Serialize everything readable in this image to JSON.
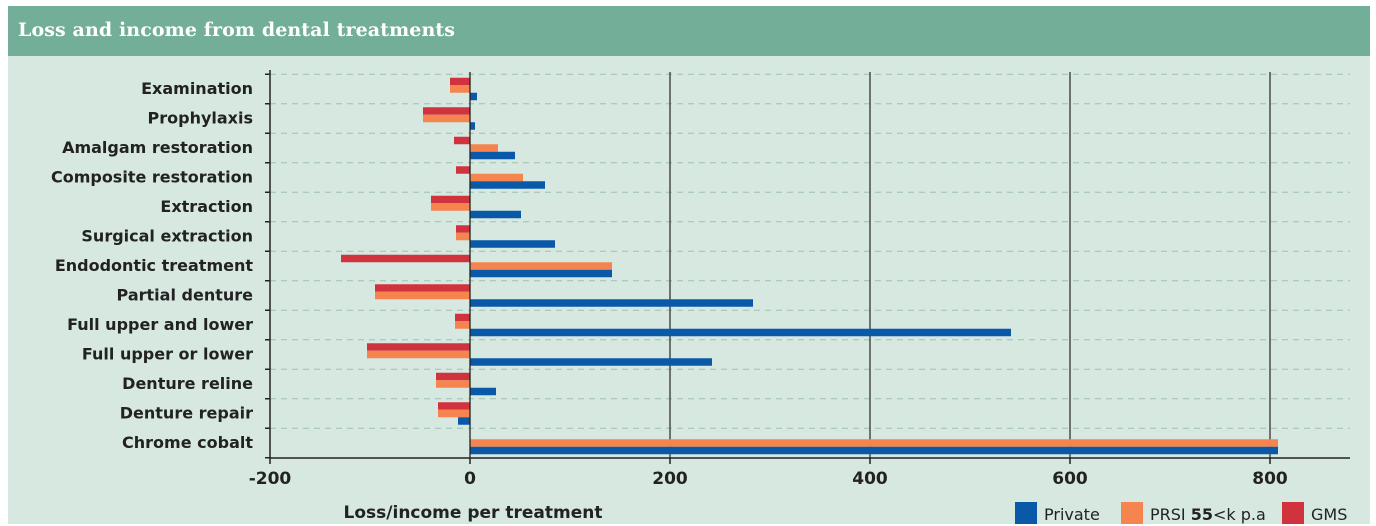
{
  "header": {
    "title": "Loss and income from dental treatments"
  },
  "colors": {
    "Private": "#0a58a8",
    "PRSI": "#f5844e",
    "GMS": "#d0323e",
    "frame": "#d6e8e0",
    "header": "#73ae98"
  },
  "chart_data": {
    "type": "bar",
    "orientation": "horizontal",
    "title": "Loss and income from dental treatments",
    "xlabel": "Loss/income per treatment",
    "ylabel": "",
    "xlim": [
      -200,
      880
    ],
    "xticks": [
      "-200",
      "0",
      "200",
      "400",
      "600",
      "800"
    ],
    "xtick_values": [
      -200,
      0,
      200,
      400,
      600,
      800
    ],
    "grid": "vertical solid at 200, 400, 600, 800; horizontal dashed between categories",
    "legend_position": "bottom-right",
    "categories": [
      "Examination",
      "Prophylaxis",
      "Amalgam restoration",
      "Composite restoration",
      "Extraction",
      "Surgical extraction",
      "Endodontic treatment",
      "Partial denture",
      "Full upper and lower",
      "Full upper or lower",
      "Denture reline",
      "Denture repair",
      "Chrome cobalt"
    ],
    "series": [
      {
        "name": "GMS",
        "color": "#d0323e",
        "values": [
          -20,
          -47,
          -16,
          -14,
          -39,
          -14,
          -129,
          -95,
          -15,
          -103,
          -34,
          -32,
          0
        ]
      },
      {
        "name": "PRSI",
        "color": "#f5844e",
        "values": [
          -20,
          -47,
          28,
          53,
          -39,
          -14,
          142,
          -95,
          -15,
          -103,
          -34,
          -32,
          808
        ]
      },
      {
        "name": "Private",
        "color": "#0a58a8",
        "values": [
          7,
          5,
          45,
          75,
          51,
          85,
          142,
          283,
          541,
          242,
          26,
          -12,
          808
        ]
      }
    ],
    "legend": [
      {
        "label": "Private",
        "color": "#0a58a8"
      },
      {
        "label": "PRSI",
        "label_bold": "55",
        "label_suffix": "<k p.a",
        "color": "#f5844e"
      },
      {
        "label": "GMS",
        "color": "#d0323e"
      }
    ]
  }
}
